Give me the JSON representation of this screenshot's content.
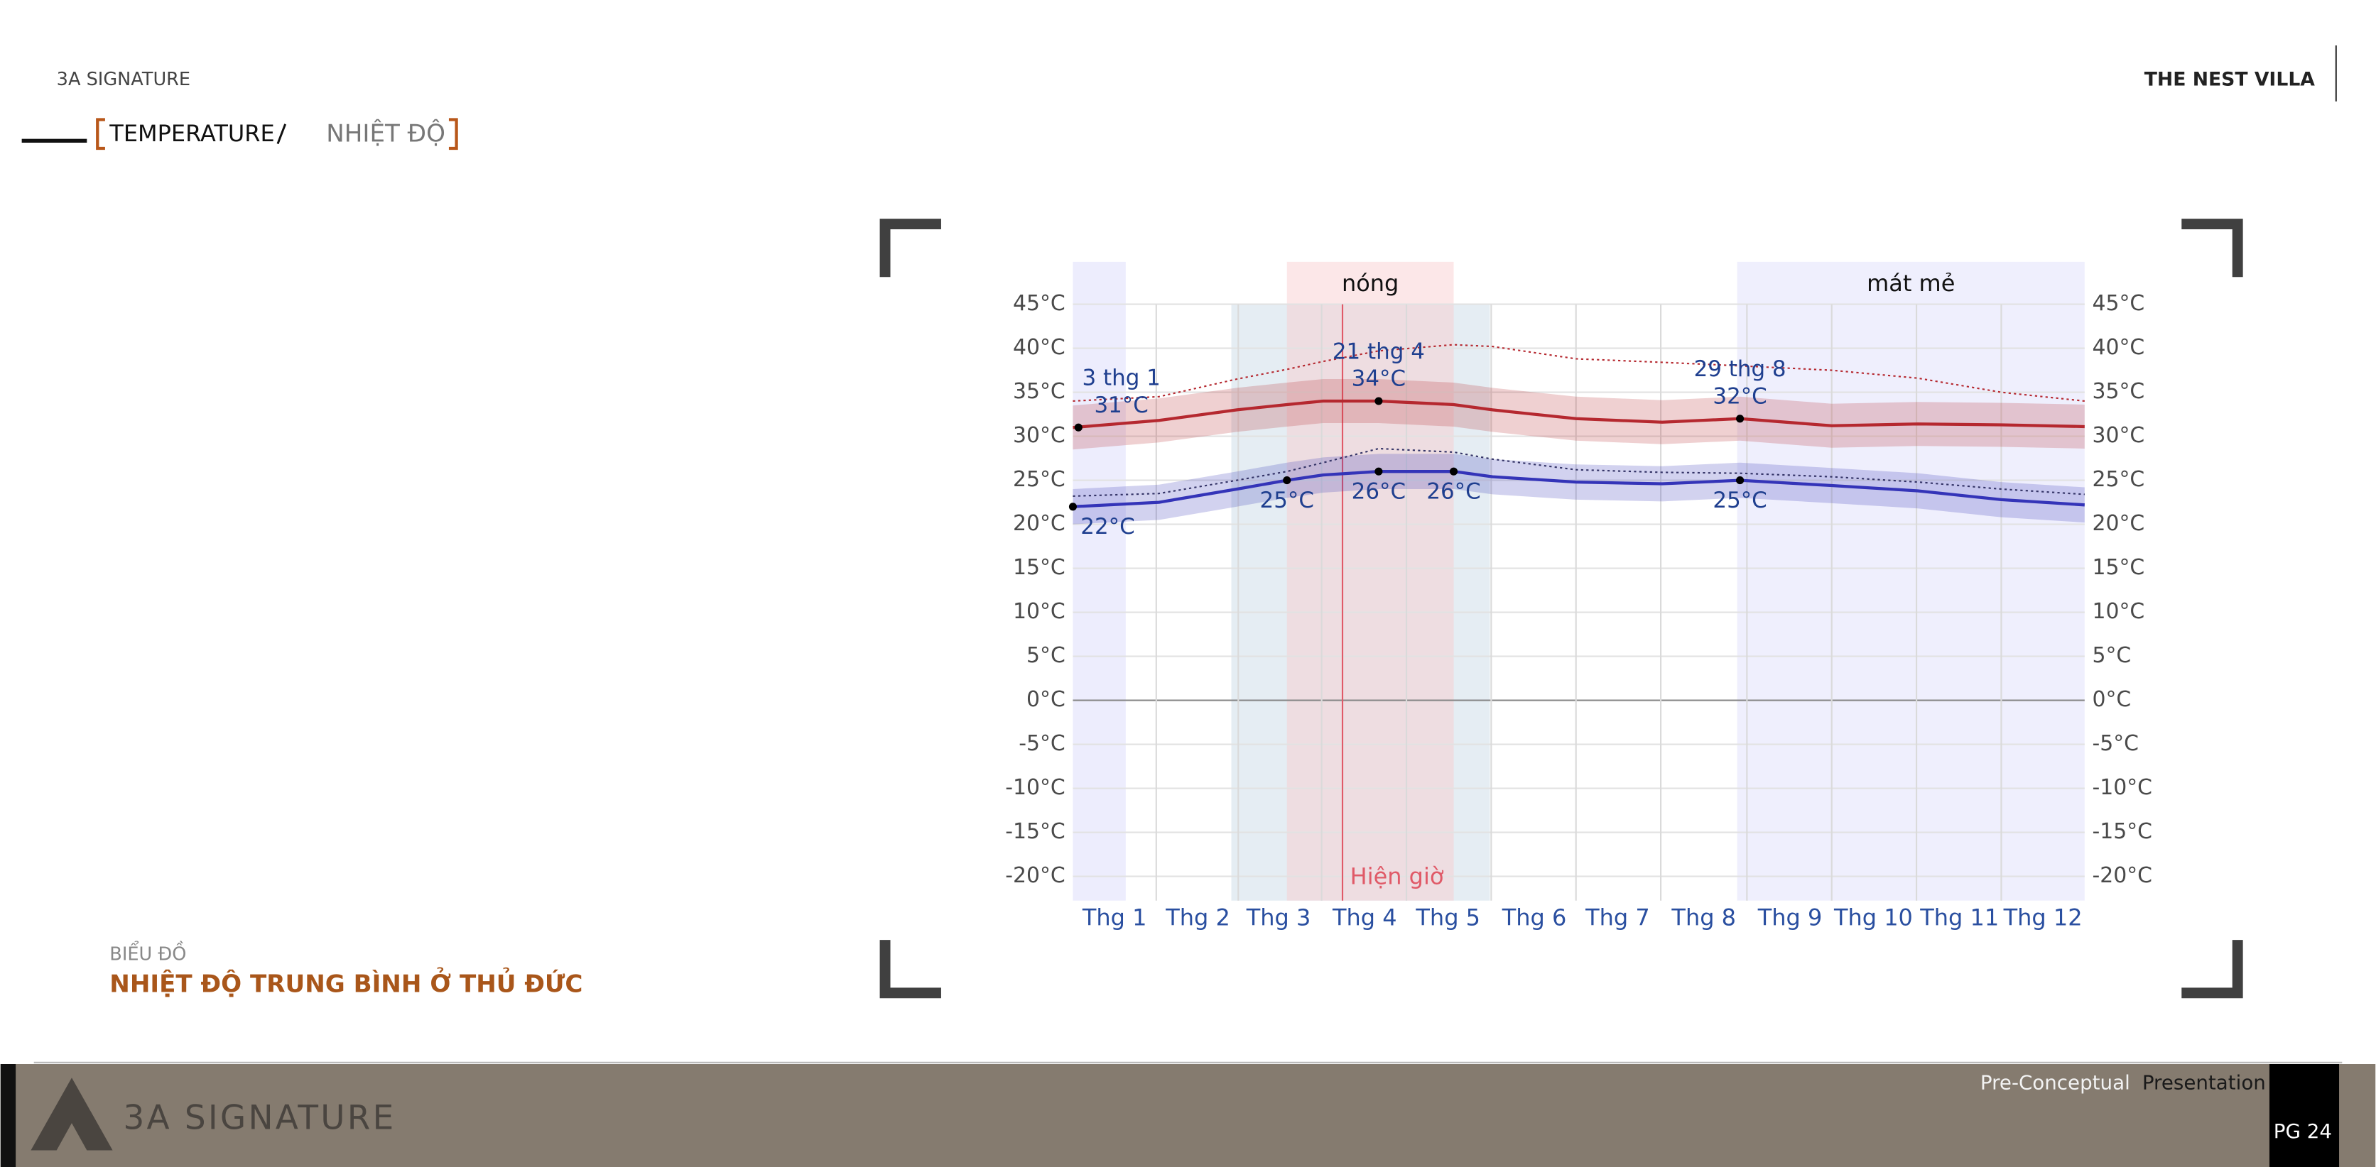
{
  "header": {
    "brand": "3A SIGNATURE",
    "project": "THE NEST VILLA",
    "section_en": "TEMPERATURE",
    "section_vi": "NHIỆT ĐỘ"
  },
  "caption": {
    "kicker": "BIỂU ĐỒ",
    "title": "NHIỆT ĐỘ TRUNG BÌNH Ở THỦ ĐỨC"
  },
  "footer": {
    "logo": "3A SIGNATURE",
    "deck": "Pre-Conceptual",
    "deck_type": "Presentation",
    "page": "PG 24"
  },
  "chart_data": {
    "type": "line",
    "x": [
      1,
      32,
      60,
      78,
      91,
      111,
      138,
      152,
      182,
      213,
      241,
      274,
      305,
      335,
      365
    ],
    "xlim": [
      1,
      365
    ],
    "xticks": [
      {
        "value": 16,
        "label": "Thg 1"
      },
      {
        "value": 46,
        "label": "Thg 2"
      },
      {
        "value": 75,
        "label": "Thg 3"
      },
      {
        "value": 106,
        "label": "Thg 4"
      },
      {
        "value": 136,
        "label": "Thg 5"
      },
      {
        "value": 167,
        "label": "Thg 6"
      },
      {
        "value": 197,
        "label": "Thg 7"
      },
      {
        "value": 228,
        "label": "Thg 8"
      },
      {
        "value": 259,
        "label": "Thg 9"
      },
      {
        "value": 289,
        "label": "Thg 10"
      },
      {
        "value": 320,
        "label": "Thg 11"
      },
      {
        "value": 350,
        "label": "Thg 12"
      }
    ],
    "ylim": [
      -20,
      45
    ],
    "yticks": [
      {
        "value": 45,
        "label": "45°C"
      },
      {
        "value": 40,
        "label": "40°C"
      },
      {
        "value": 35,
        "label": "35°C"
      },
      {
        "value": 30,
        "label": "30°C"
      },
      {
        "value": 25,
        "label": "25°C"
      },
      {
        "value": 20,
        "label": "20°C"
      },
      {
        "value": 15,
        "label": "15°C"
      },
      {
        "value": 10,
        "label": "10°C"
      },
      {
        "value": 5,
        "label": "5°C"
      },
      {
        "value": 0,
        "label": "0°C"
      },
      {
        "value": -5,
        "label": "-5°C"
      },
      {
        "value": -10,
        "label": "-10°C"
      },
      {
        "value": -15,
        "label": "-15°C"
      },
      {
        "value": -20,
        "label": "-20°C"
      }
    ],
    "grid": true,
    "regions": [
      {
        "start": 1,
        "end": 20,
        "color": "#d8d8fa"
      },
      {
        "start": 58,
        "end": 151,
        "color": "#c6d8e4"
      },
      {
        "start": 78,
        "end": 138,
        "color": "#f9c9cc",
        "label": "nóng"
      },
      {
        "start": 240,
        "end": 365,
        "color": "#dcdcfa",
        "label": "mát mẻ"
      }
    ],
    "now": {
      "x": 98,
      "label": "Hiện giờ",
      "color": "#e05a68"
    },
    "series": [
      {
        "color": "#b5282f",
        "values": [
          31,
          31.8,
          33,
          33.6,
          34,
          34,
          33.6,
          33,
          32,
          31.6,
          32,
          31.2,
          31.4,
          31.3,
          31.1
        ],
        "lower": [
          28.5,
          29.3,
          30.5,
          31.1,
          31.5,
          31.5,
          31.1,
          30.5,
          29.5,
          29.1,
          29.5,
          28.7,
          28.9,
          28.8,
          28.6
        ],
        "upper": [
          33.5,
          34.3,
          35.5,
          36.1,
          36.5,
          36.5,
          36.1,
          35.5,
          34.5,
          34.1,
          34.5,
          33.7,
          33.9,
          33.8,
          33.6
        ]
      },
      {
        "color": "#3434b8",
        "values": [
          22,
          22.5,
          24,
          25,
          25.6,
          26,
          26,
          25.4,
          24.8,
          24.6,
          25,
          24.4,
          23.8,
          22.8,
          22.2
        ],
        "lower": [
          20,
          20.5,
          22,
          23,
          23.6,
          24,
          24,
          23.4,
          22.8,
          22.6,
          23,
          22.4,
          21.8,
          20.8,
          20.2
        ],
        "upper": [
          24,
          24.5,
          26,
          27,
          27.6,
          28,
          28,
          27.4,
          26.8,
          26.6,
          27,
          26.4,
          25.8,
          24.8,
          24.2
        ]
      },
      {
        "color": "#b5282f",
        "dashed": true,
        "values": [
          34,
          34.5,
          36.5,
          37.6,
          38.5,
          39.7,
          40.4,
          40.2,
          38.8,
          38.4,
          38,
          37.5,
          36.6,
          35,
          34
        ]
      },
      {
        "color": "#333366",
        "dashed": true,
        "values": [
          23.2,
          23.5,
          25,
          26,
          27,
          28.6,
          28.2,
          27.4,
          26.2,
          25.9,
          25.8,
          25.4,
          24.8,
          24,
          23.4
        ]
      }
    ],
    "annotations": [
      {
        "x": 3,
        "y": 31,
        "label": "3 thg 1",
        "value_label": "31°C",
        "position": "above"
      },
      {
        "x": 111,
        "y": 34,
        "label": "21 thg 4",
        "value_label": "34°C",
        "position": "above"
      },
      {
        "x": 241,
        "y": 32,
        "label": "29 thg 8",
        "value_label": "32°C",
        "position": "above"
      },
      {
        "x": 1,
        "y": 22,
        "value_label": "22°C",
        "position": "below"
      },
      {
        "x": 78,
        "y": 25,
        "value_label": "25°C",
        "position": "below"
      },
      {
        "x": 111,
        "y": 26,
        "value_label": "26°C",
        "position": "below"
      },
      {
        "x": 138,
        "y": 26,
        "value_label": "26°C",
        "position": "below"
      },
      {
        "x": 241,
        "y": 25,
        "value_label": "25°C",
        "position": "below"
      }
    ]
  }
}
